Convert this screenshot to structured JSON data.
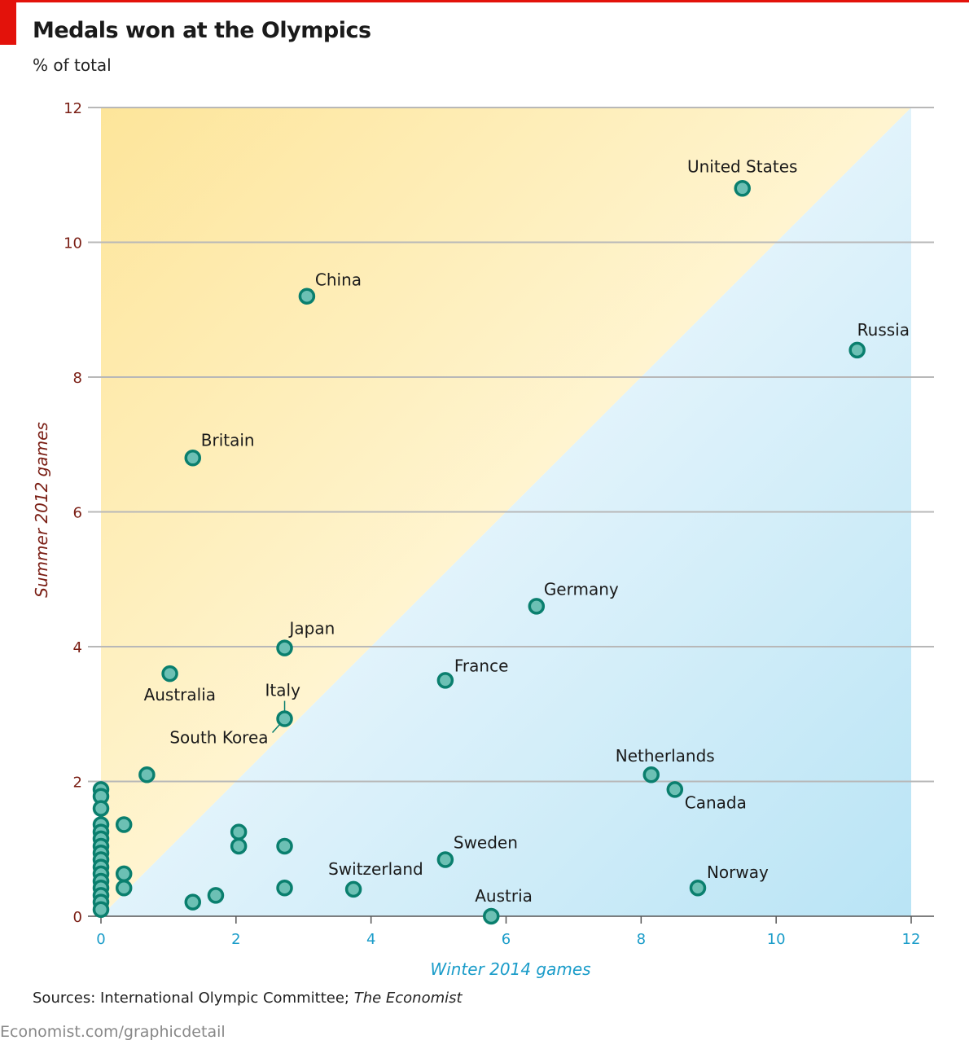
{
  "header": {
    "title": "Medals won at the Olympics",
    "subtitle": "% of total"
  },
  "footer": {
    "source_prefix": "Sources: International Olympic Committee; ",
    "source_italic": "The Economist",
    "url": "Economist.com/graphicdetail"
  },
  "colors": {
    "accent_red": "#e3120b",
    "summer_axis": "#7a1e14",
    "winter_axis": "#1a9cc9",
    "dot_fill": "#6cc0b4",
    "dot_stroke": "#0a7f6e",
    "summer_region": "#fde9a8",
    "winter_region": "#c4e7f5"
  },
  "chart_data": {
    "type": "scatter",
    "title": "Medals won at the Olympics",
    "subtitle": "% of total",
    "xlabel": "Winter 2014 games",
    "ylabel": "Summer 2012 games",
    "xlim": [
      0,
      12
    ],
    "ylim": [
      0,
      12
    ],
    "xticks": [
      "0",
      "2",
      "4",
      "6",
      "8",
      "10",
      "12"
    ],
    "yticks": [
      "0",
      "2",
      "4",
      "6",
      "8",
      "10",
      "12"
    ],
    "grid": "horizontal",
    "reference_line": "y = x",
    "points": [
      {
        "label": "United States",
        "x": 9.5,
        "y": 10.8
      },
      {
        "label": "China",
        "x": 3.05,
        "y": 9.2
      },
      {
        "label": "Russia",
        "x": 11.2,
        "y": 8.4
      },
      {
        "label": "Britain",
        "x": 1.36,
        "y": 6.8
      },
      {
        "label": "Germany",
        "x": 6.45,
        "y": 4.6
      },
      {
        "label": "Japan",
        "x": 2.72,
        "y": 3.98
      },
      {
        "label": "Australia",
        "x": 1.02,
        "y": 3.6
      },
      {
        "label": "France",
        "x": 5.1,
        "y": 3.5
      },
      {
        "label": "Italy",
        "x": 2.72,
        "y": 2.93
      },
      {
        "label": "South Korea",
        "x": 2.72,
        "y": 2.93
      },
      {
        "label": "Netherlands",
        "x": 8.15,
        "y": 2.1
      },
      {
        "label": "Canada",
        "x": 8.5,
        "y": 1.88
      },
      {
        "label": "Sweden",
        "x": 5.1,
        "y": 0.84
      },
      {
        "label": "Switzerland",
        "x": 3.74,
        "y": 0.4
      },
      {
        "label": "Norway",
        "x": 8.84,
        "y": 0.42
      },
      {
        "label": "Austria",
        "x": 5.78,
        "y": 0.0
      },
      {
        "label": "",
        "x": 0.68,
        "y": 2.1
      },
      {
        "label": "",
        "x": 0.34,
        "y": 1.36
      },
      {
        "label": "",
        "x": 0.34,
        "y": 0.63
      },
      {
        "label": "",
        "x": 0.34,
        "y": 0.42
      },
      {
        "label": "",
        "x": 2.04,
        "y": 1.25
      },
      {
        "label": "",
        "x": 2.04,
        "y": 1.04
      },
      {
        "label": "",
        "x": 2.72,
        "y": 1.04
      },
      {
        "label": "",
        "x": 2.72,
        "y": 0.42
      },
      {
        "label": "",
        "x": 1.36,
        "y": 0.21
      },
      {
        "label": "",
        "x": 1.7,
        "y": 0.31
      },
      {
        "label": "",
        "x": 0,
        "y": 1.88
      },
      {
        "label": "",
        "x": 0,
        "y": 1.78
      },
      {
        "label": "",
        "x": 0,
        "y": 1.6
      },
      {
        "label": "",
        "x": 0,
        "y": 1.36
      },
      {
        "label": "",
        "x": 0,
        "y": 1.25
      },
      {
        "label": "",
        "x": 0,
        "y": 1.15
      },
      {
        "label": "",
        "x": 0,
        "y": 1.04
      },
      {
        "label": "",
        "x": 0,
        "y": 0.94
      },
      {
        "label": "",
        "x": 0,
        "y": 0.84
      },
      {
        "label": "",
        "x": 0,
        "y": 0.73
      },
      {
        "label": "",
        "x": 0,
        "y": 0.63
      },
      {
        "label": "",
        "x": 0,
        "y": 0.52
      },
      {
        "label": "",
        "x": 0,
        "y": 0.42
      },
      {
        "label": "",
        "x": 0,
        "y": 0.31
      },
      {
        "label": "",
        "x": 0,
        "y": 0.21
      },
      {
        "label": "",
        "x": 0,
        "y": 0.1
      }
    ]
  }
}
